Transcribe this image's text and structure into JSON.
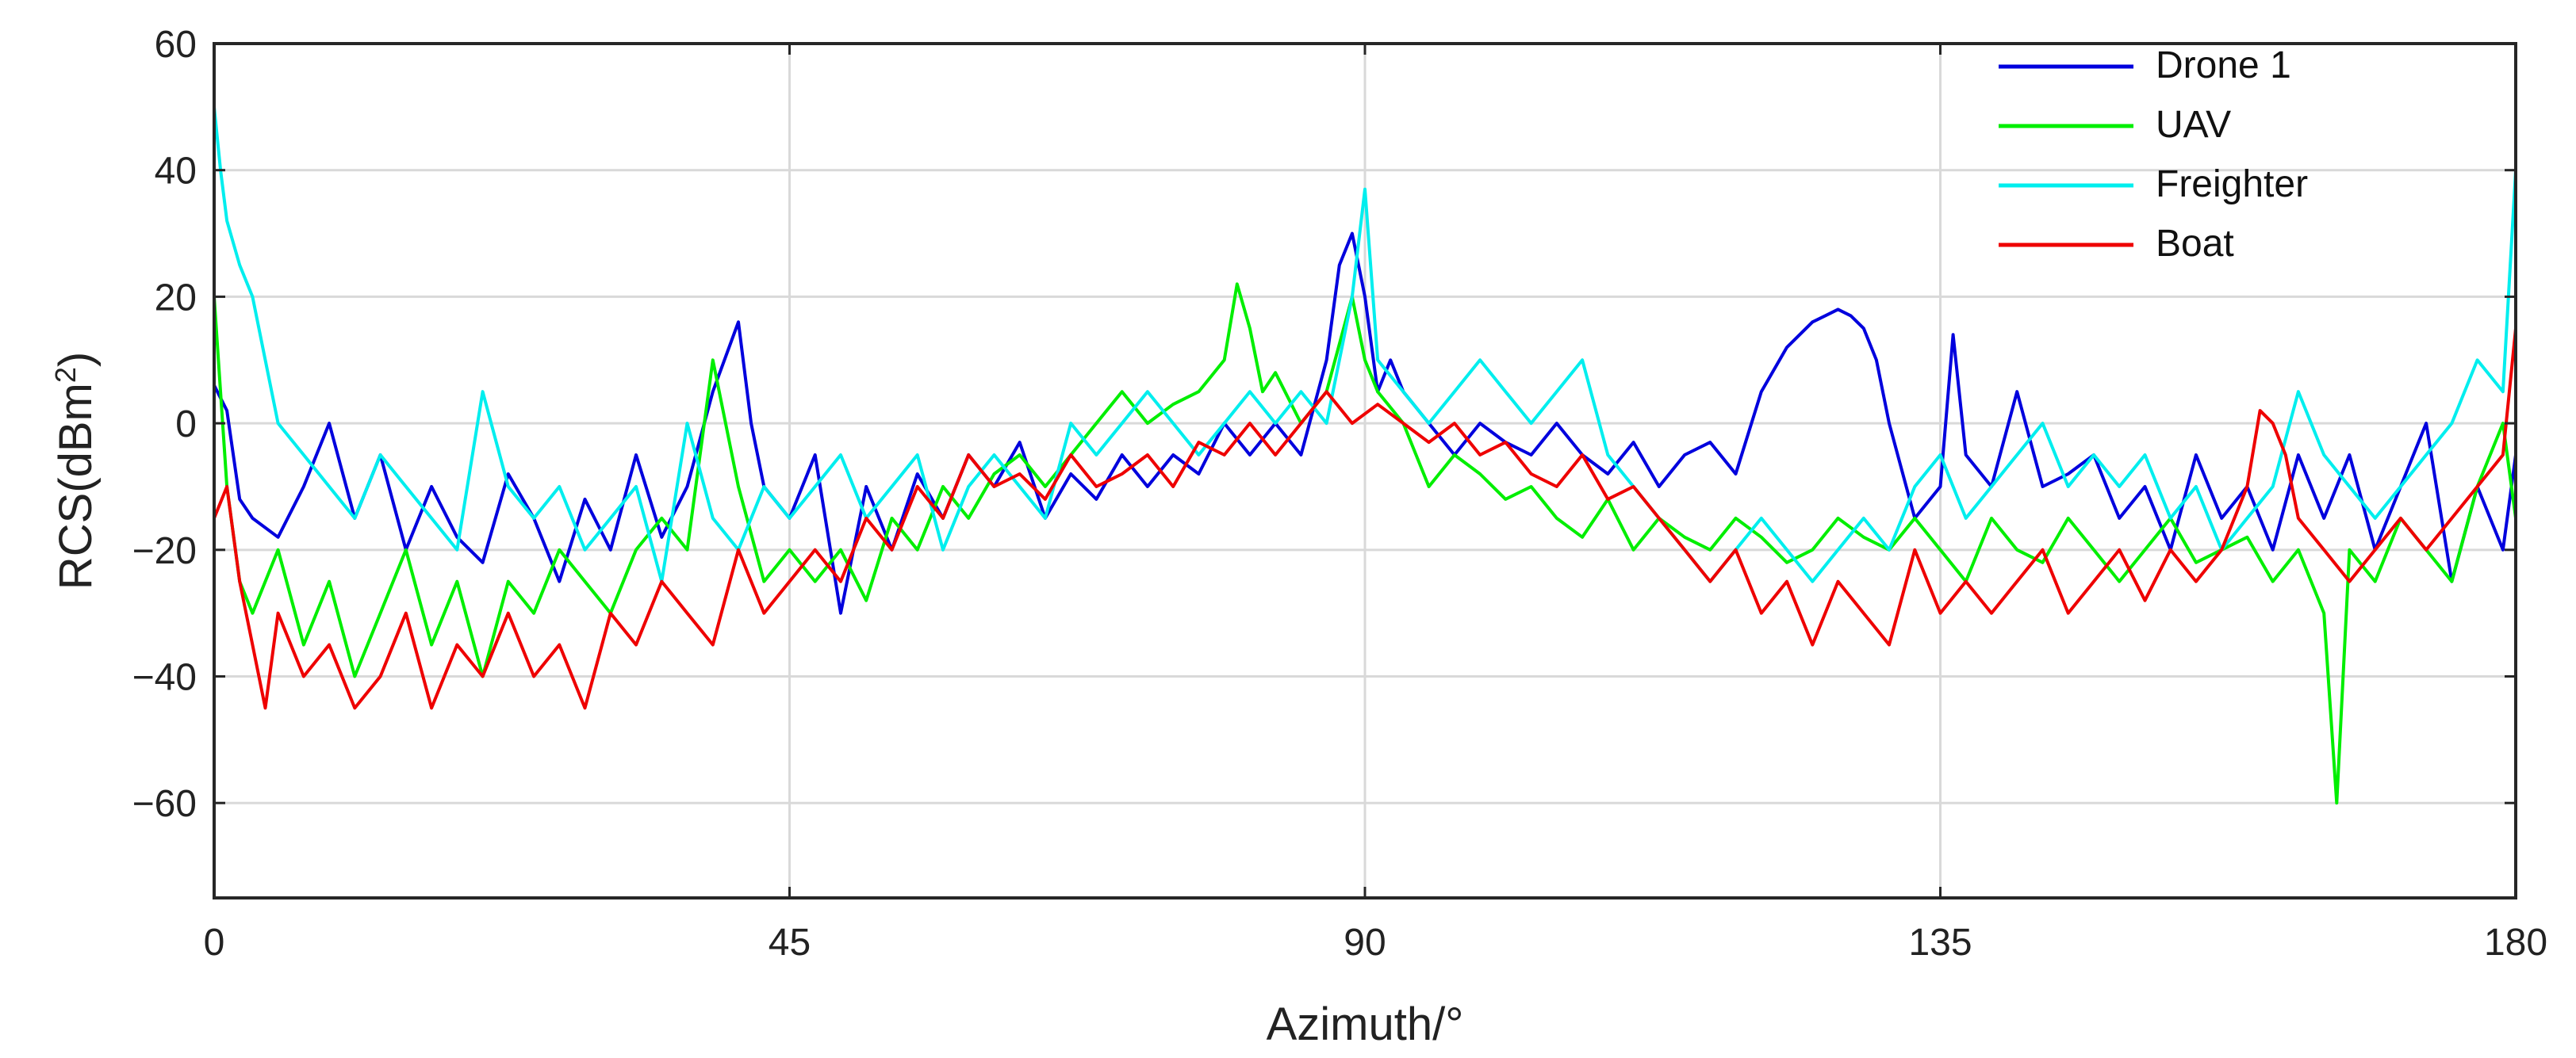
{
  "chart_data": {
    "type": "line",
    "title": "",
    "xlabel": "Azimuth/°",
    "ylabel": "RCS(dBm²)",
    "ylabel_base": "RCS(dBm",
    "ylabel_sup": "2",
    "ylabel_close": ")",
    "xlim": [
      0,
      180
    ],
    "ylim": [
      -75,
      60
    ],
    "xticks": [
      0,
      45,
      90,
      135,
      180
    ],
    "yticks": [
      -60,
      -40,
      -20,
      0,
      20,
      40,
      60
    ],
    "xtick_labels": [
      "0",
      "45",
      "90",
      "135",
      "180"
    ],
    "ytick_labels": [
      "−60",
      "−40",
      "−20",
      "0",
      "20",
      "40",
      "60"
    ],
    "grid": true,
    "legend_position": "top-right",
    "series": [
      {
        "name": "Drone 1",
        "color": "#0000dd",
        "x": [
          0,
          1,
          2,
          3,
          5,
          7,
          9,
          11,
          13,
          15,
          17,
          19,
          21,
          23,
          25,
          27,
          29,
          31,
          33,
          35,
          37,
          39,
          41,
          42,
          43,
          45,
          47,
          49,
          51,
          53,
          55,
          57,
          59,
          61,
          63,
          65,
          67,
          69,
          71,
          73,
          75,
          77,
          79,
          81,
          83,
          85,
          87,
          88,
          89,
          90,
          91,
          92,
          93,
          95,
          97,
          99,
          101,
          103,
          105,
          107,
          109,
          111,
          113,
          115,
          117,
          119,
          121,
          123,
          125,
          126,
          127,
          128,
          129,
          130,
          131,
          133,
          135,
          136,
          137,
          139,
          141,
          143,
          145,
          147,
          149,
          151,
          153,
          155,
          157,
          159,
          161,
          163,
          165,
          167,
          169,
          171,
          173,
          175,
          177,
          179,
          180
        ],
        "y": [
          6,
          2,
          -12,
          -15,
          -18,
          -10,
          0,
          -15,
          -5,
          -20,
          -10,
          -18,
          -22,
          -8,
          -15,
          -25,
          -12,
          -20,
          -5,
          -18,
          -10,
          5,
          16,
          0,
          -10,
          -15,
          -5,
          -30,
          -10,
          -20,
          -8,
          -15,
          -5,
          -10,
          -3,
          -15,
          -8,
          -12,
          -5,
          -10,
          -5,
          -8,
          0,
          -5,
          0,
          -5,
          10,
          25,
          30,
          20,
          5,
          10,
          5,
          0,
          -5,
          0,
          -3,
          -5,
          0,
          -5,
          -8,
          -3,
          -10,
          -5,
          -3,
          -8,
          5,
          12,
          16,
          17,
          18,
          17,
          15,
          10,
          0,
          -15,
          -10,
          14,
          -5,
          -10,
          5,
          -10,
          -8,
          -5,
          -15,
          -10,
          -20,
          -5,
          -15,
          -10,
          -20,
          -5,
          -15,
          -5,
          -20,
          -10,
          0,
          -25,
          -10,
          -20,
          -5
        ]
      },
      {
        "name": "UAV",
        "color": "#00ee00",
        "x": [
          0,
          1,
          2,
          3,
          5,
          7,
          9,
          11,
          13,
          15,
          17,
          19,
          21,
          23,
          25,
          27,
          29,
          31,
          33,
          35,
          37,
          39,
          41,
          43,
          45,
          47,
          49,
          51,
          53,
          55,
          57,
          59,
          61,
          63,
          65,
          67,
          69,
          71,
          73,
          75,
          77,
          79,
          80,
          81,
          82,
          83,
          85,
          87,
          89,
          90,
          91,
          93,
          95,
          97,
          99,
          101,
          103,
          105,
          107,
          109,
          111,
          113,
          115,
          117,
          119,
          121,
          123,
          125,
          127,
          129,
          131,
          133,
          135,
          137,
          139,
          141,
          143,
          145,
          147,
          149,
          151,
          153,
          155,
          157,
          159,
          161,
          163,
          165,
          166,
          167,
          169,
          171,
          173,
          175,
          177,
          179,
          180
        ],
        "y": [
          20,
          -10,
          -25,
          -30,
          -20,
          -35,
          -25,
          -40,
          -30,
          -20,
          -35,
          -25,
          -40,
          -25,
          -30,
          -20,
          -25,
          -30,
          -20,
          -15,
          -20,
          10,
          -10,
          -25,
          -20,
          -25,
          -20,
          -28,
          -15,
          -20,
          -10,
          -15,
          -8,
          -5,
          -10,
          -5,
          0,
          5,
          0,
          3,
          5,
          10,
          22,
          15,
          5,
          8,
          0,
          5,
          20,
          10,
          5,
          0,
          -10,
          -5,
          -8,
          -12,
          -10,
          -15,
          -18,
          -12,
          -20,
          -15,
          -18,
          -20,
          -15,
          -18,
          -22,
          -20,
          -15,
          -18,
          -20,
          -15,
          -20,
          -25,
          -15,
          -20,
          -22,
          -15,
          -20,
          -25,
          -20,
          -15,
          -22,
          -20,
          -18,
          -25,
          -20,
          -30,
          -60,
          -20,
          -25,
          -15,
          -20,
          -25,
          -10,
          0,
          -15
        ]
      },
      {
        "name": "Freighter",
        "color": "#00eeee",
        "x": [
          0,
          0.5,
          1,
          2,
          3,
          4,
          5,
          7,
          9,
          11,
          13,
          15,
          17,
          19,
          21,
          23,
          25,
          27,
          29,
          31,
          33,
          35,
          37,
          39,
          41,
          43,
          45,
          47,
          49,
          51,
          53,
          55,
          57,
          59,
          61,
          63,
          65,
          67,
          69,
          71,
          73,
          75,
          77,
          79,
          81,
          83,
          85,
          87,
          88,
          89,
          90,
          91,
          93,
          95,
          97,
          99,
          101,
          103,
          105,
          107,
          109,
          111,
          113,
          115,
          117,
          119,
          121,
          123,
          125,
          127,
          129,
          131,
          133,
          135,
          137,
          139,
          141,
          143,
          145,
          147,
          149,
          151,
          153,
          155,
          157,
          159,
          161,
          163,
          165,
          167,
          169,
          171,
          173,
          175,
          177,
          179,
          180
        ],
        "y": [
          50,
          40,
          32,
          25,
          20,
          10,
          0,
          -5,
          -10,
          -15,
          -5,
          -10,
          -15,
          -20,
          5,
          -10,
          -15,
          -10,
          -20,
          -15,
          -10,
          -25,
          0,
          -15,
          -20,
          -10,
          -15,
          -10,
          -5,
          -15,
          -10,
          -5,
          -20,
          -10,
          -5,
          -10,
          -15,
          0,
          -5,
          0,
          5,
          0,
          -5,
          0,
          5,
          0,
          5,
          0,
          10,
          20,
          37,
          10,
          5,
          0,
          5,
          10,
          5,
          0,
          5,
          10,
          -5,
          -10,
          -15,
          -20,
          -25,
          -20,
          -15,
          -20,
          -25,
          -20,
          -15,
          -20,
          -10,
          -5,
          -15,
          -10,
          -5,
          0,
          -10,
          -5,
          -10,
          -5,
          -15,
          -10,
          -20,
          -15,
          -10,
          5,
          -5,
          -10,
          -15,
          -10,
          -5,
          0,
          10,
          5,
          40
        ]
      },
      {
        "name": "Boat",
        "color": "#ee0000",
        "x": [
          0,
          1,
          2,
          3,
          4,
          5,
          7,
          9,
          11,
          13,
          15,
          17,
          19,
          21,
          23,
          25,
          27,
          29,
          31,
          33,
          35,
          37,
          39,
          41,
          43,
          45,
          47,
          49,
          51,
          53,
          55,
          57,
          59,
          61,
          63,
          65,
          67,
          69,
          71,
          73,
          75,
          77,
          79,
          81,
          83,
          85,
          87,
          89,
          91,
          93,
          95,
          97,
          99,
          101,
          103,
          105,
          107,
          109,
          111,
          113,
          115,
          117,
          119,
          121,
          123,
          125,
          127,
          129,
          131,
          133,
          135,
          137,
          139,
          141,
          143,
          145,
          147,
          149,
          151,
          153,
          155,
          157,
          159,
          160,
          161,
          162,
          163,
          165,
          167,
          169,
          171,
          173,
          175,
          177,
          179,
          180
        ],
        "y": [
          -15,
          -10,
          -25,
          -35,
          -45,
          -30,
          -40,
          -35,
          -45,
          -40,
          -30,
          -45,
          -35,
          -40,
          -30,
          -40,
          -35,
          -45,
          -30,
          -35,
          -25,
          -30,
          -35,
          -20,
          -30,
          -25,
          -20,
          -25,
          -15,
          -20,
          -10,
          -15,
          -5,
          -10,
          -8,
          -12,
          -5,
          -10,
          -8,
          -5,
          -10,
          -3,
          -5,
          0,
          -5,
          0,
          5,
          0,
          3,
          0,
          -3,
          0,
          -5,
          -3,
          -8,
          -10,
          -5,
          -12,
          -10,
          -15,
          -20,
          -25,
          -20,
          -30,
          -25,
          -35,
          -25,
          -30,
          -35,
          -20,
          -30,
          -25,
          -30,
          -25,
          -20,
          -30,
          -25,
          -20,
          -28,
          -20,
          -25,
          -20,
          -10,
          2,
          0,
          -5,
          -15,
          -20,
          -25,
          -20,
          -15,
          -20,
          -15,
          -10,
          -5,
          15
        ]
      }
    ]
  }
}
